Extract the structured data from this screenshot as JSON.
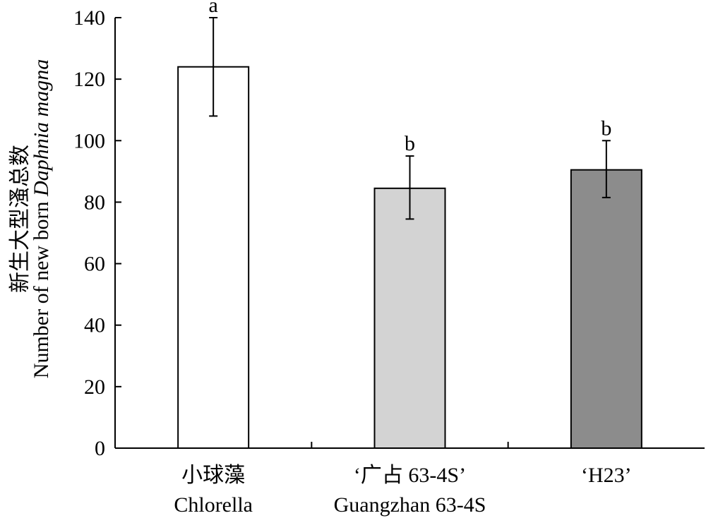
{
  "chart_data": {
    "type": "bar",
    "ylabel_cn": "新生大型溞总数",
    "ylabel_en_prefix": "Number of new born ",
    "ylabel_en_species": "Daphnia magna",
    "ylim": [
      0,
      140
    ],
    "yticks": [
      "0",
      "20",
      "40",
      "60",
      "80",
      "100",
      "120",
      "140"
    ],
    "categories": [
      {
        "line1": "小球藻",
        "line2": "Chlorella"
      },
      {
        "line1": "‘广占 63-4S’",
        "line2": "Guangzhan 63-4S"
      },
      {
        "line1": "‘H23’",
        "line2": ""
      }
    ],
    "values": [
      124,
      84.5,
      90.5
    ],
    "error_low": [
      108,
      74.5,
      81.5
    ],
    "error_high": [
      140,
      95,
      100
    ],
    "significance": [
      "a",
      "b",
      "b"
    ],
    "colors": [
      "#ffffff",
      "#d3d3d3",
      "#8c8c8c"
    ],
    "grid": false,
    "legend": "none"
  }
}
